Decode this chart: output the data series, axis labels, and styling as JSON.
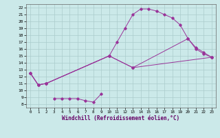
{
  "xlabel": "Windchill (Refroidissement éolien,°C)",
  "bg_color": "#cbe9e9",
  "line_color": "#993399",
  "grid_color": "#aacccc",
  "xlim": [
    -0.5,
    23.5
  ],
  "ylim": [
    7.5,
    22.5
  ],
  "xticks": [
    0,
    1,
    2,
    3,
    4,
    5,
    6,
    7,
    8,
    9,
    10,
    11,
    12,
    13,
    14,
    15,
    16,
    17,
    18,
    19,
    20,
    21,
    22,
    23
  ],
  "yticks": [
    8,
    9,
    10,
    11,
    12,
    13,
    14,
    15,
    16,
    17,
    18,
    19,
    20,
    21,
    22
  ],
  "line1_x": [
    0,
    1,
    2,
    10,
    11,
    12,
    13,
    14,
    15,
    16,
    17,
    18,
    19,
    20,
    21,
    22,
    23
  ],
  "line1_y": [
    12.5,
    10.8,
    11.0,
    15.0,
    17.0,
    19.0,
    21.0,
    21.8,
    21.8,
    21.5,
    21.0,
    20.5,
    19.5,
    17.5,
    16.0,
    15.3,
    14.8
  ],
  "line2_x": [
    0,
    1,
    2,
    10,
    13,
    20,
    21,
    22,
    23
  ],
  "line2_y": [
    12.5,
    10.8,
    11.0,
    15.0,
    13.3,
    17.5,
    16.2,
    15.5,
    14.8
  ],
  "line3_x": [
    0,
    1,
    2,
    10,
    13,
    23
  ],
  "line3_y": [
    12.5,
    10.8,
    11.0,
    15.0,
    13.3,
    14.8
  ],
  "line4_x": [
    3,
    4,
    5,
    6,
    7,
    8,
    9
  ],
  "line4_y": [
    8.8,
    8.8,
    8.8,
    8.8,
    8.5,
    8.3,
    9.5
  ]
}
